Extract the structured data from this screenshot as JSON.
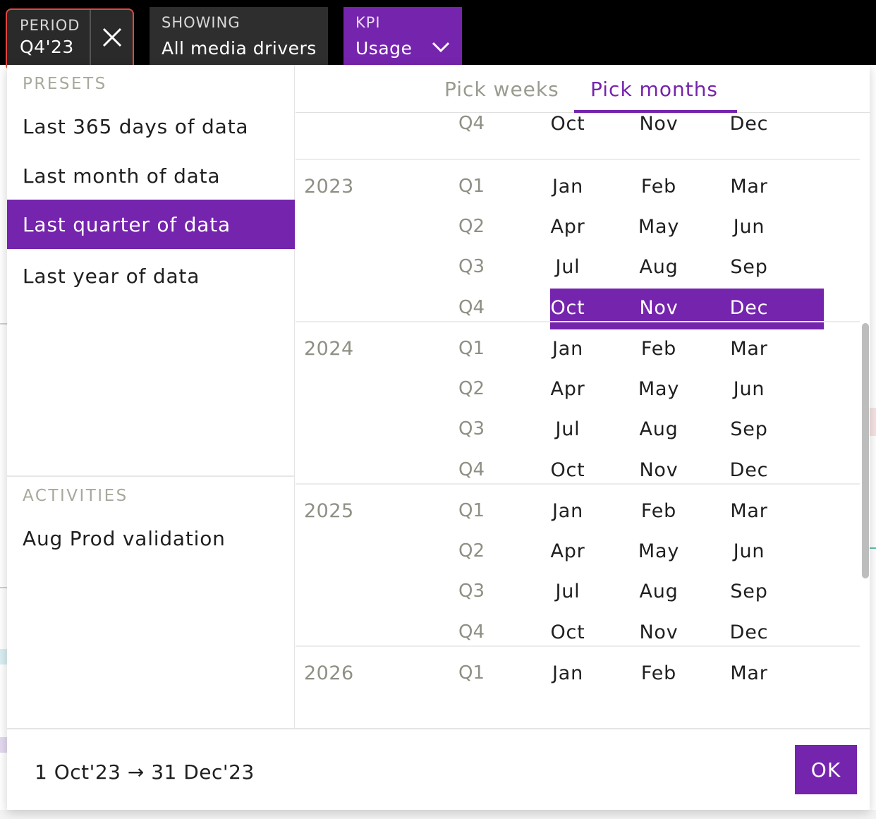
{
  "topbar": {
    "period": {
      "label": "PERIOD",
      "value": "Q4'23"
    },
    "showing": {
      "label": "SHOWING",
      "value": "All media drivers"
    },
    "kpi": {
      "label": "KPI",
      "value": "Usage"
    }
  },
  "presets": {
    "title": "PRESETS",
    "items": [
      {
        "label": "Last 365 days of data",
        "active": false
      },
      {
        "label": "Last month of data",
        "active": false
      },
      {
        "label": "Last quarter of data",
        "active": true
      },
      {
        "label": "Last year of data",
        "active": false
      }
    ]
  },
  "activities": {
    "title": "ACTIVITIES",
    "items": [
      {
        "label": "Aug Prod validation"
      }
    ]
  },
  "tabs": [
    {
      "label": "Pick weeks",
      "active": false
    },
    {
      "label": "Pick months",
      "active": true
    }
  ],
  "calendar": {
    "partial_top": {
      "quarter": "Q4",
      "months": [
        "Oct",
        "Nov",
        "Dec"
      ]
    },
    "years": [
      {
        "year": "2023",
        "quarters": [
          {
            "q": "Q1",
            "months": [
              "Jan",
              "Feb",
              "Mar"
            ]
          },
          {
            "q": "Q2",
            "months": [
              "Apr",
              "May",
              "Jun"
            ]
          },
          {
            "q": "Q3",
            "months": [
              "Jul",
              "Aug",
              "Sep"
            ]
          },
          {
            "q": "Q4",
            "months": [
              "Oct",
              "Nov",
              "Dec"
            ],
            "selected": true
          }
        ]
      },
      {
        "year": "2024",
        "quarters": [
          {
            "q": "Q1",
            "months": [
              "Jan",
              "Feb",
              "Mar"
            ]
          },
          {
            "q": "Q2",
            "months": [
              "Apr",
              "May",
              "Jun"
            ]
          },
          {
            "q": "Q3",
            "months": [
              "Jul",
              "Aug",
              "Sep"
            ]
          },
          {
            "q": "Q4",
            "months": [
              "Oct",
              "Nov",
              "Dec"
            ]
          }
        ]
      },
      {
        "year": "2025",
        "quarters": [
          {
            "q": "Q1",
            "months": [
              "Jan",
              "Feb",
              "Mar"
            ]
          },
          {
            "q": "Q2",
            "months": [
              "Apr",
              "May",
              "Jun"
            ]
          },
          {
            "q": "Q3",
            "months": [
              "Jul",
              "Aug",
              "Sep"
            ]
          },
          {
            "q": "Q4",
            "months": [
              "Oct",
              "Nov",
              "Dec"
            ]
          }
        ]
      },
      {
        "year": "2026",
        "quarters": [
          {
            "q": "Q1",
            "months": [
              "Jan",
              "Feb",
              "Mar"
            ]
          }
        ]
      }
    ]
  },
  "footer": {
    "range": "1 Oct'23 → 31 Dec'23",
    "ok_label": "OK"
  },
  "colors": {
    "accent": "#7524ad",
    "highlight_border": "#e0483e"
  }
}
